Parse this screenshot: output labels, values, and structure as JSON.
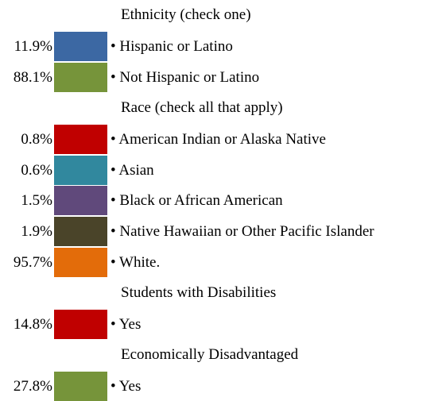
{
  "sections": [
    {
      "heading": "Ethnicity (check one)",
      "items": [
        {
          "pct": "11.9%",
          "label": "• Hispanic or Latino",
          "color": "#3c68a3"
        },
        {
          "pct": "88.1%",
          "label": "• Not Hispanic or Latino",
          "color": "#76943a"
        }
      ]
    },
    {
      "heading": "Race (check all that apply)",
      "items": [
        {
          "pct": "0.8%",
          "label": "• American Indian or Alaska Native",
          "color": "#c00000"
        },
        {
          "pct": "0.6%",
          "label": "• Asian",
          "color": "#31889e"
        },
        {
          "pct": "1.5%",
          "label": "• Black or African American",
          "color": "#60497b"
        },
        {
          "pct": "1.9%",
          "label": "• Native Hawaiian or Other Pacific Islander",
          "color": "#4a4429"
        },
        {
          "pct": "95.7%",
          "label": "• White.",
          "color": "#e36c0a"
        }
      ]
    },
    {
      "heading": "Students with Disabilities",
      "items": [
        {
          "pct": "14.8%",
          "label": "• Yes",
          "color": "#c00000"
        }
      ]
    },
    {
      "heading": "Economically Disadvantaged",
      "items": [
        {
          "pct": "27.8%",
          "label": "• Yes",
          "color": "#76943a"
        }
      ]
    }
  ]
}
